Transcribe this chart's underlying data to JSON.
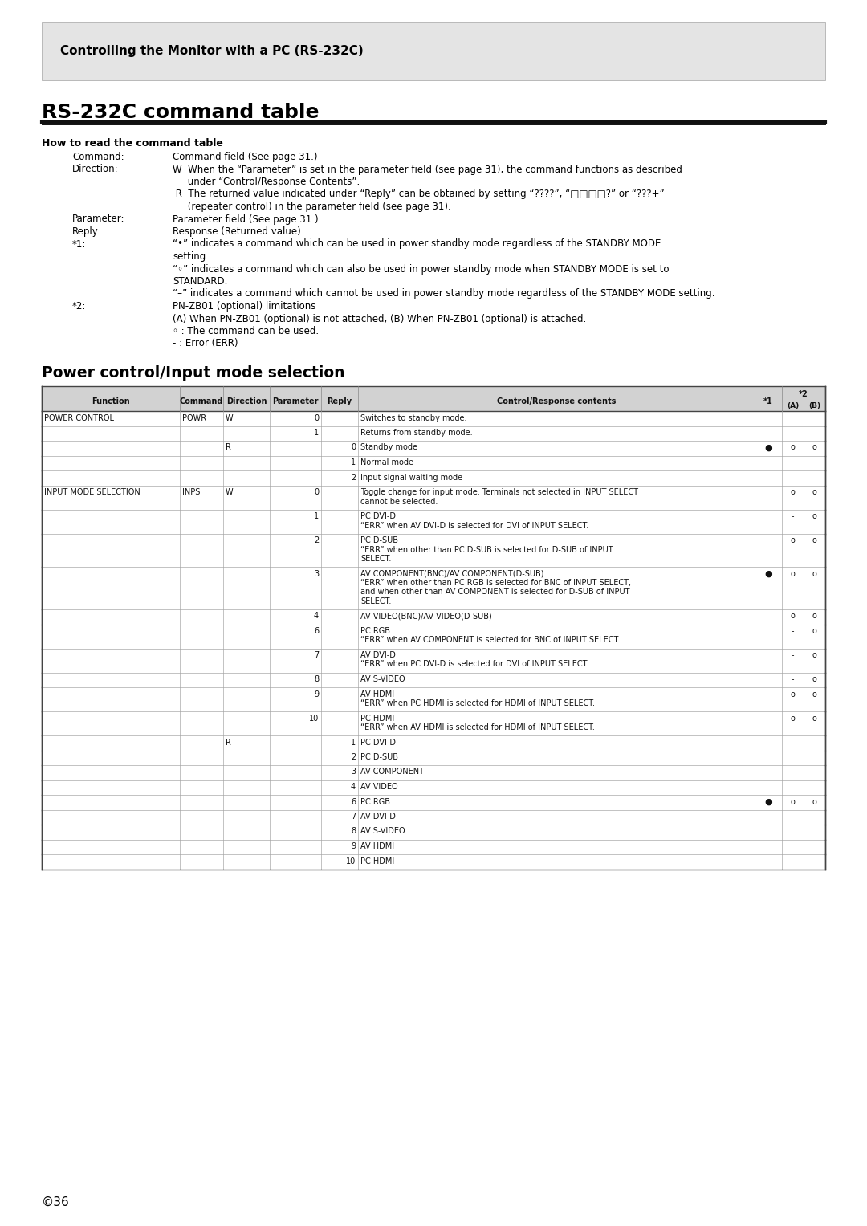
{
  "page_bg": "#ffffff",
  "header_bg": "#e2e2e2",
  "header_text": "Controlling the Monitor with a PC (RS-232C)",
  "title": "RS-232C command table",
  "section_how_to": "How to read the command table",
  "section_power": "Power control/Input mode selection",
  "page_number": "©36",
  "table_data": [
    {
      "func": "POWER CONTROL",
      "cmd": "POWR",
      "dir": "W",
      "param": "0",
      "reply": "",
      "content": "Switches to standby mode.",
      "s1": "",
      "s2a": "",
      "s2b": ""
    },
    {
      "func": "",
      "cmd": "",
      "dir": "",
      "param": "1",
      "reply": "",
      "content": "Returns from standby mode.",
      "s1": "",
      "s2a": "",
      "s2b": ""
    },
    {
      "func": "",
      "cmd": "",
      "dir": "R",
      "param": "",
      "reply": "0",
      "content": "Standby mode",
      "s1": "●",
      "s2a": "o",
      "s2b": "o"
    },
    {
      "func": "",
      "cmd": "",
      "dir": "",
      "param": "",
      "reply": "1",
      "content": "Normal mode",
      "s1": "",
      "s2a": "",
      "s2b": ""
    },
    {
      "func": "",
      "cmd": "",
      "dir": "",
      "param": "",
      "reply": "2",
      "content": "Input signal waiting mode",
      "s1": "",
      "s2a": "",
      "s2b": ""
    },
    {
      "func": "INPUT MODE SELECTION",
      "cmd": "INPS",
      "dir": "W",
      "param": "0",
      "reply": "",
      "content": "Toggle change for input mode. Terminals not selected in INPUT SELECT\ncannot be selected.",
      "s1": "",
      "s2a": "o",
      "s2b": "o"
    },
    {
      "func": "",
      "cmd": "",
      "dir": "",
      "param": "1",
      "reply": "",
      "content": "PC DVI-D\n“ERR” when AV DVI-D is selected for DVI of INPUT SELECT.",
      "s1": "",
      "s2a": "-",
      "s2b": "o"
    },
    {
      "func": "",
      "cmd": "",
      "dir": "",
      "param": "2",
      "reply": "",
      "content": "PC D-SUB\n“ERR” when other than PC D-SUB is selected for D-SUB of INPUT\nSELECT.",
      "s1": "",
      "s2a": "o",
      "s2b": "o"
    },
    {
      "func": "",
      "cmd": "",
      "dir": "",
      "param": "3",
      "reply": "",
      "content": "AV COMPONENT(BNC)/AV COMPONENT(D-SUB)\n“ERR” when other than PC RGB is selected for BNC of INPUT SELECT,\nand when other than AV COMPONENT is selected for D-SUB of INPUT\nSELECT.",
      "s1": "●",
      "s2a": "o",
      "s2b": "o"
    },
    {
      "func": "",
      "cmd": "",
      "dir": "",
      "param": "4",
      "reply": "",
      "content": "AV VIDEO(BNC)/AV VIDEO(D-SUB)",
      "s1": "",
      "s2a": "o",
      "s2b": "o"
    },
    {
      "func": "",
      "cmd": "",
      "dir": "",
      "param": "6",
      "reply": "",
      "content": "PC RGB\n“ERR” when AV COMPONENT is selected for BNC of INPUT SELECT.",
      "s1": "",
      "s2a": "-",
      "s2b": "o"
    },
    {
      "func": "",
      "cmd": "",
      "dir": "",
      "param": "7",
      "reply": "",
      "content": "AV DVI-D\n“ERR” when PC DVI-D is selected for DVI of INPUT SELECT.",
      "s1": "",
      "s2a": "-",
      "s2b": "o"
    },
    {
      "func": "",
      "cmd": "",
      "dir": "",
      "param": "8",
      "reply": "",
      "content": "AV S-VIDEO",
      "s1": "",
      "s2a": "-",
      "s2b": "o"
    },
    {
      "func": "",
      "cmd": "",
      "dir": "",
      "param": "9",
      "reply": "",
      "content": "AV HDMI\n“ERR” when PC HDMI is selected for HDMI of INPUT SELECT.",
      "s1": "",
      "s2a": "o",
      "s2b": "o"
    },
    {
      "func": "",
      "cmd": "",
      "dir": "",
      "param": "10",
      "reply": "",
      "content": "PC HDMI\n“ERR” when AV HDMI is selected for HDMI of INPUT SELECT.",
      "s1": "",
      "s2a": "o",
      "s2b": "o"
    },
    {
      "func": "",
      "cmd": "",
      "dir": "R",
      "param": "",
      "reply": "1",
      "content": "PC DVI-D",
      "s1": "",
      "s2a": "",
      "s2b": ""
    },
    {
      "func": "",
      "cmd": "",
      "dir": "",
      "param": "",
      "reply": "2",
      "content": "PC D-SUB",
      "s1": "",
      "s2a": "",
      "s2b": ""
    },
    {
      "func": "",
      "cmd": "",
      "dir": "",
      "param": "",
      "reply": "3",
      "content": "AV COMPONENT",
      "s1": "",
      "s2a": "",
      "s2b": ""
    },
    {
      "func": "",
      "cmd": "",
      "dir": "",
      "param": "",
      "reply": "4",
      "content": "AV VIDEO",
      "s1": "",
      "s2a": "",
      "s2b": ""
    },
    {
      "func": "",
      "cmd": "",
      "dir": "",
      "param": "",
      "reply": "6",
      "content": "PC RGB",
      "s1": "●",
      "s2a": "o",
      "s2b": "o"
    },
    {
      "func": "",
      "cmd": "",
      "dir": "",
      "param": "",
      "reply": "7",
      "content": "AV DVI-D",
      "s1": "",
      "s2a": "",
      "s2b": ""
    },
    {
      "func": "",
      "cmd": "",
      "dir": "",
      "param": "",
      "reply": "8",
      "content": "AV S-VIDEO",
      "s1": "",
      "s2a": "",
      "s2b": ""
    },
    {
      "func": "",
      "cmd": "",
      "dir": "",
      "param": "",
      "reply": "9",
      "content": "AV HDMI",
      "s1": "",
      "s2a": "",
      "s2b": ""
    },
    {
      "func": "",
      "cmd": "",
      "dir": "",
      "param": "",
      "reply": "10",
      "content": "PC HDMI",
      "s1": "",
      "s2a": "",
      "s2b": ""
    }
  ]
}
